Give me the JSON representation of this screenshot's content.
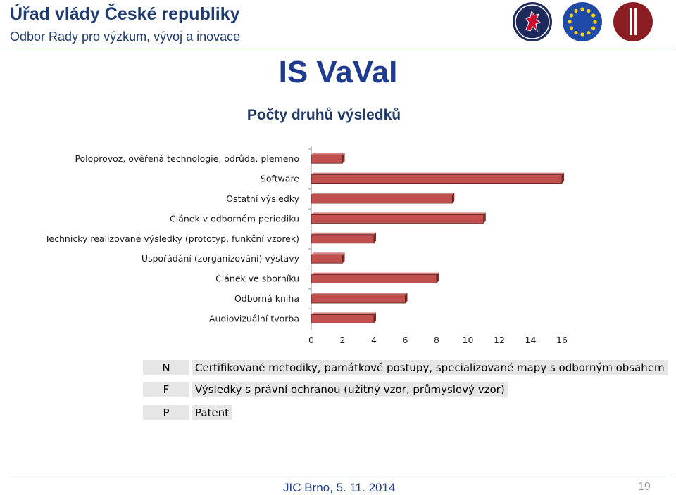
{
  "header": {
    "title": "Úřad vlády České republiky",
    "subtitle": "Odbor Rady pro výzkum, vývoj a inovace"
  },
  "logos": [
    "czech-lion-emblem",
    "eu-stars-flag",
    "research-council-logo"
  ],
  "slide_title": "IS VaVaI",
  "chart_data": {
    "type": "bar",
    "orientation": "horizontal",
    "title": "Počty druhů výsledků",
    "categories": [
      "Poloprovoz, ověřená technologie, odrůda, plemeno",
      "Software",
      "Ostatní výsledky",
      "Článek v odborném periodiku",
      "Technicky realizované výsledky (prototyp, funkční vzorek)",
      "Uspořádání (zorganizování) výstavy",
      "Článek ve sborníku",
      "Odborná kniha",
      "Audiovizuální tvorba"
    ],
    "values": [
      2,
      16,
      9,
      11,
      4,
      2,
      8,
      6,
      4
    ],
    "xlim": [
      0,
      16
    ],
    "xticks": [
      "0",
      "2",
      "4",
      "6",
      "8",
      "10",
      "12",
      "14",
      "16"
    ],
    "bar_color": "#c0504d",
    "grid": false
  },
  "legend": [
    {
      "key": "N",
      "text": "Certifikované metodiky, památkové postupy, specializované mapy s odborným obsahem"
    },
    {
      "key": "F",
      "text": "Výsledky s právní ochranou (užitný vzor, průmyslový vzor)"
    },
    {
      "key": "P",
      "text": "Patent"
    }
  ],
  "footer": {
    "event": "JIC Brno,  5. 11. 2014",
    "page_number": "19"
  }
}
